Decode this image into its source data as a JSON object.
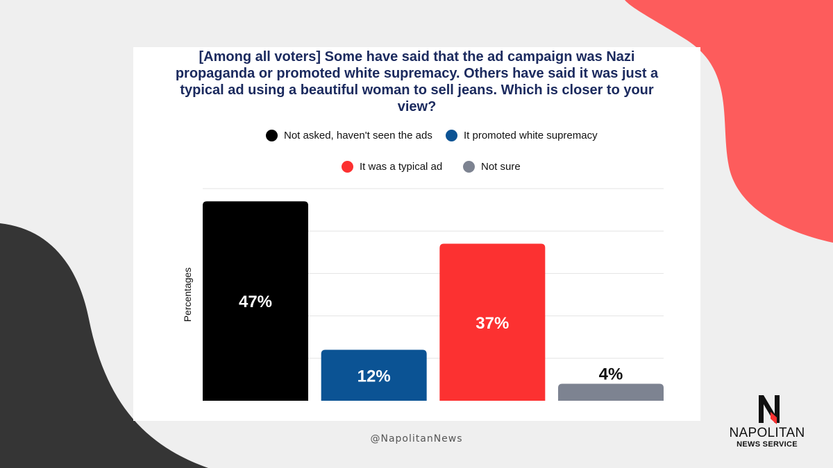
{
  "colors": {
    "background": "#efefef",
    "coral_shape": "#fd5c5c",
    "dark_shape": "#353535",
    "title": "#1b2a5e"
  },
  "chart_data": {
    "type": "bar",
    "title": "[Among all voters] Some have said that the ad campaign was Nazi propaganda or promoted white supremacy. Others have said it was just a typical ad using a beautiful woman to sell jeans. Which is closer to your view?",
    "xlabel": "",
    "ylabel": "Percentages",
    "ylim": [
      0,
      50
    ],
    "grid": true,
    "legend_position": "top",
    "categories": [
      "Not asked, haven't seen the ads",
      "It promoted white supremacy",
      "It was a typical ad",
      "Not sure"
    ],
    "values": [
      47,
      12,
      37,
      4
    ],
    "labels": [
      "47%",
      "12%",
      "37%",
      "4%"
    ],
    "colors": [
      "#000000",
      "#0b5394",
      "#fc3131",
      "#7d8391"
    ],
    "label_colors": [
      "#ffffff",
      "#ffffff",
      "#ffffff",
      "#111111"
    ]
  },
  "footer": {
    "handle": "@NapolitanNews"
  },
  "logo": {
    "letter": "N",
    "name": "NAPOLITAN",
    "subtitle": "NEWS SERVICE"
  }
}
